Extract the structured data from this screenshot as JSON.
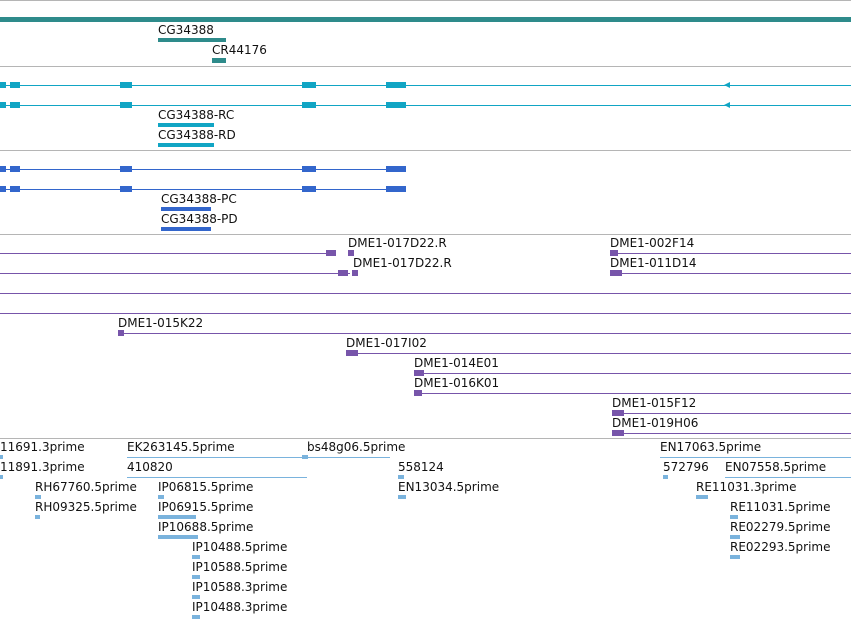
{
  "colors": {
    "gene": "#2e8b8b",
    "transcript": "#11a5c4",
    "protein": "#3366cc",
    "clone": "#7755aa",
    "est": "#7ab3dd",
    "divider": "#b5b5b5"
  },
  "tracks": {
    "genes": [
      "CG34388",
      "CR44176"
    ],
    "transcripts": [
      "CG34388-RC",
      "CG34388-RD"
    ],
    "proteins": [
      "CG34388-PC",
      "CG34388-PD"
    ],
    "clones": [
      "DME1-017D22.R",
      "DME1-017D22.R",
      "DME1-002F14",
      "DME1-011D14",
      "DME1-015K22",
      "DME1-017I02",
      "DME1-014E01",
      "DME1-016K01",
      "DME1-015F12",
      "DME1-019H06"
    ],
    "ests": [
      "11691.3prime",
      "11891.3prime",
      "EK263145.5prime",
      "410820",
      "bs48g06.5prime",
      "558124",
      "EN17063.5prime",
      "572796",
      "EN07558.5prime",
      "RH67760.5prime",
      "RH09325.5prime",
      "IP06815.5prime",
      "IP06915.5prime",
      "IP10688.5prime",
      "EN13034.5prime",
      "RE11031.3prime",
      "RE11031.5prime",
      "RE02279.5prime",
      "RE02293.5prime",
      "IP10488.5prime",
      "IP10588.5prime",
      "IP10588.3prime",
      "IP10488.3prime"
    ]
  }
}
